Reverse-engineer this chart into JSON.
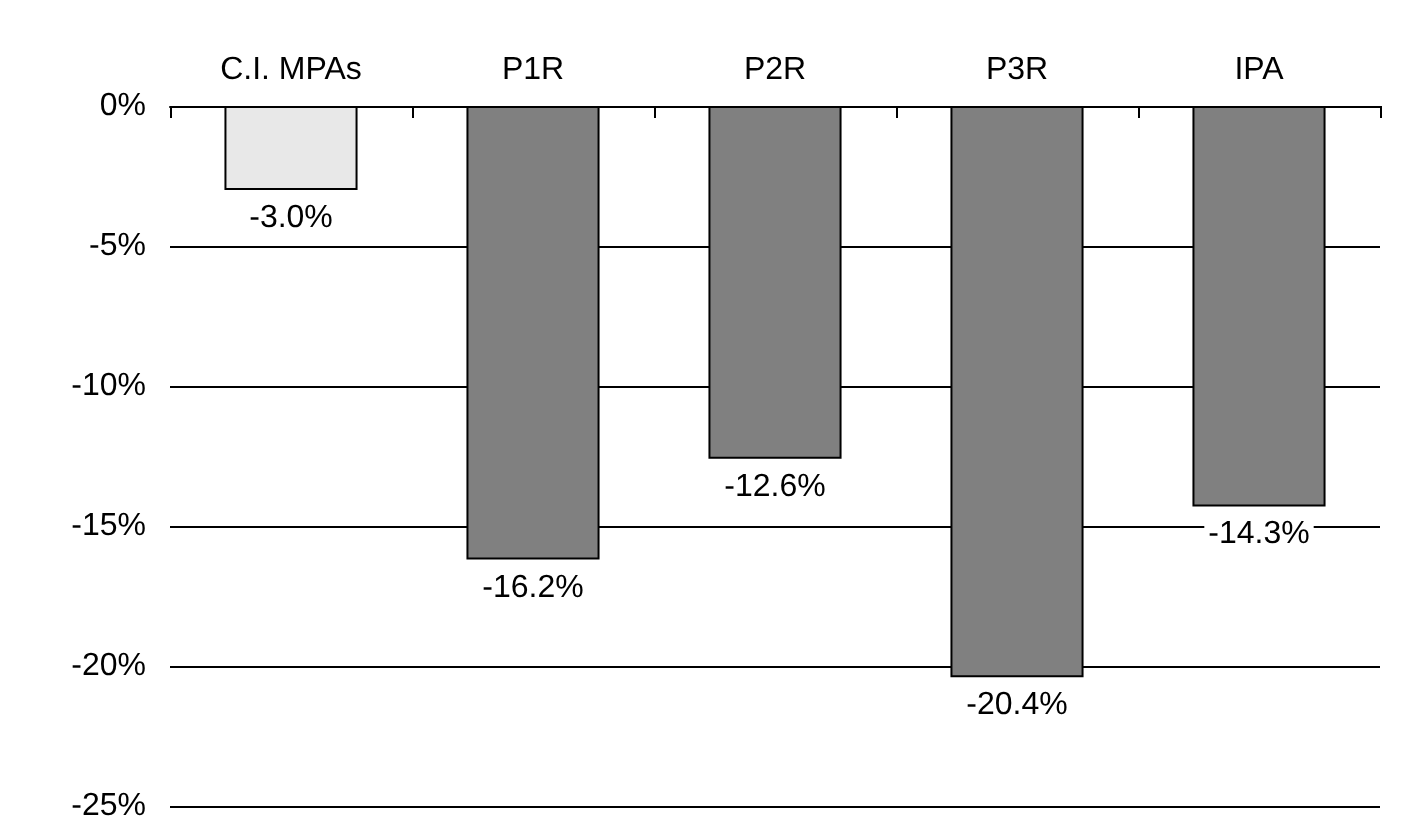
{
  "chart_data": {
    "type": "bar",
    "categories": [
      "C.I. MPAs",
      "P1R",
      "P2R",
      "P3R",
      "IPA"
    ],
    "values": [
      -3.0,
      -16.2,
      -12.6,
      -20.4,
      -14.3
    ],
    "colors": [
      "#e8e8e8",
      "#808080",
      "#808080",
      "#808080",
      "#808080"
    ],
    "value_labels": [
      "-3.0%",
      "-16.2%",
      "-12.6%",
      "-20.4%",
      "-14.3%"
    ],
    "ylim": [
      -25,
      0
    ],
    "yticks": [
      {
        "value": -25,
        "label": "-25%"
      },
      {
        "value": -20,
        "label": "-20%"
      },
      {
        "value": -15,
        "label": "-15%"
      },
      {
        "value": -10,
        "label": "-10%"
      },
      {
        "value": -5,
        "label": "-5%"
      },
      {
        "value": 0,
        "label": "0%"
      }
    ],
    "grid": "y"
  }
}
